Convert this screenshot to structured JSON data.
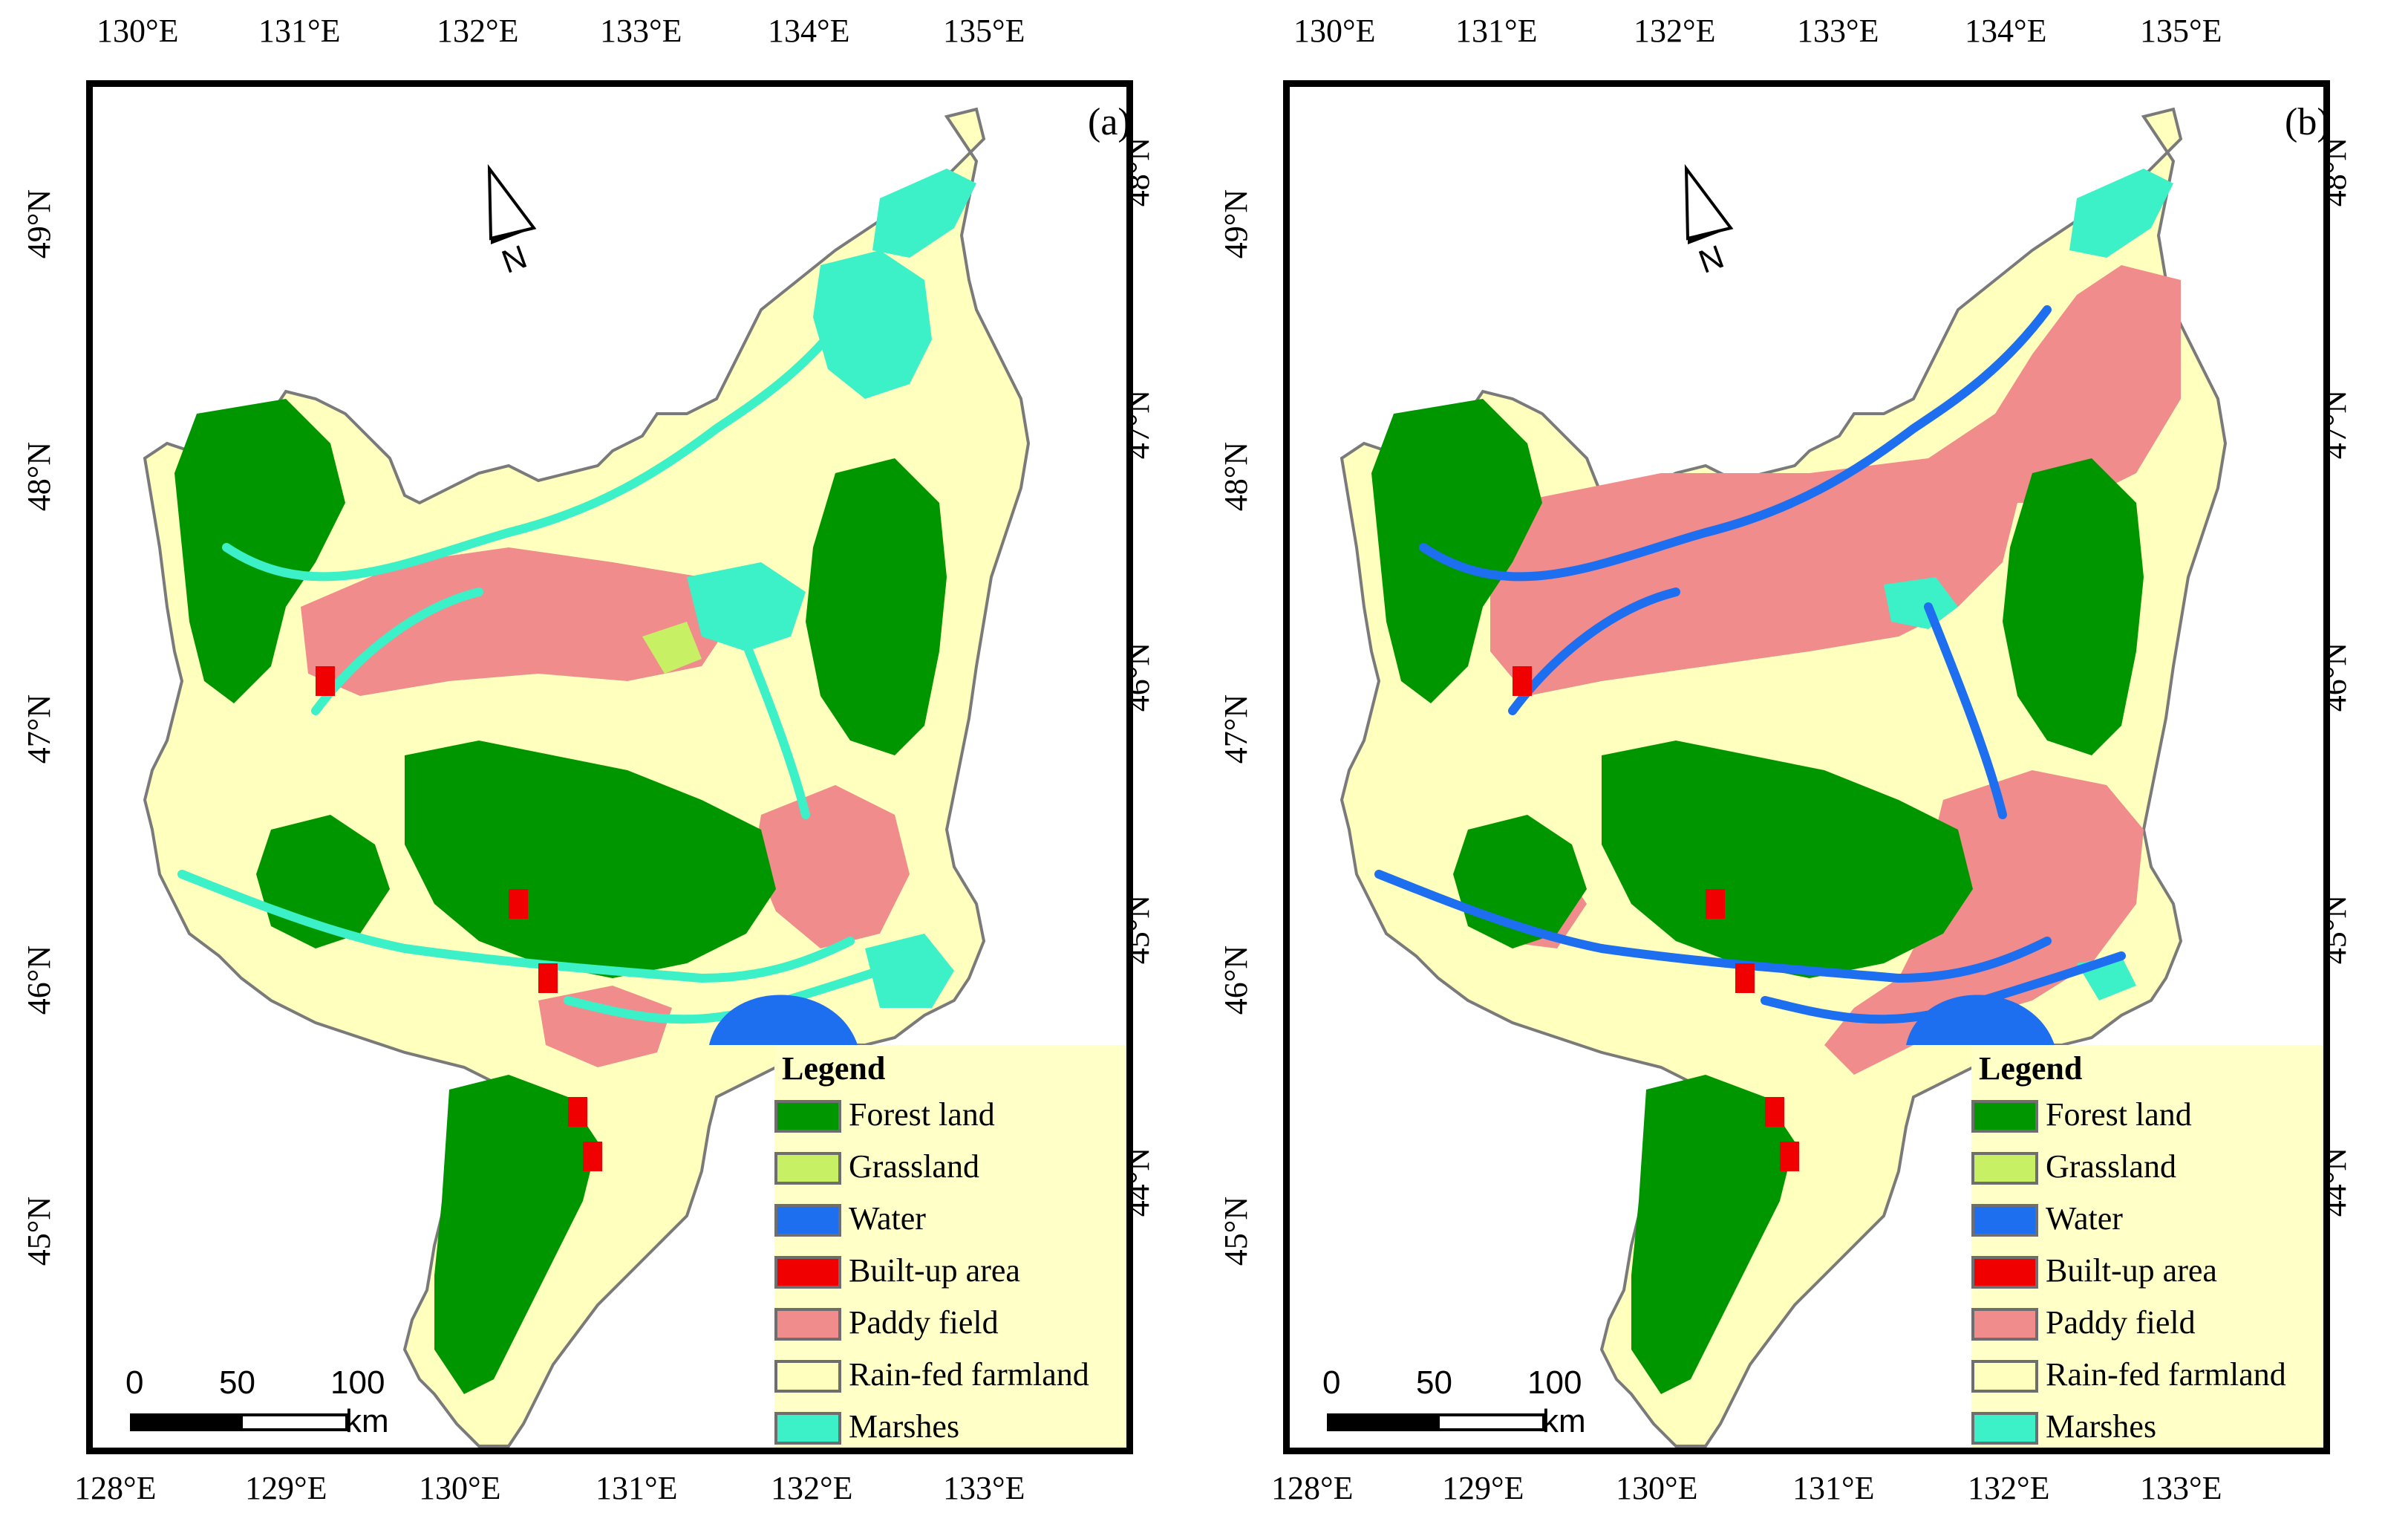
{
  "panels": [
    {
      "label": "(a)",
      "top_ticks": [
        "130°E",
        "131°E",
        "132°E",
        "133°E",
        "134°E",
        "135°E"
      ],
      "bottom_ticks": [
        "128°E",
        "129°E",
        "130°E",
        "131°E",
        "132°E",
        "133°E"
      ],
      "left_ticks": [
        "49°N",
        "48°N",
        "47°N",
        "46°N",
        "45°N"
      ],
      "right_ticks": [
        "48°N",
        "47°N",
        "46°N",
        "45°N",
        "44°N"
      ],
      "legend": {
        "title": "Legend",
        "items": [
          {
            "label": "Forest land",
            "color": "#009600"
          },
          {
            "label": "Grassland",
            "color": "#c8f064"
          },
          {
            "label": "Water",
            "color": "#1e6ef0"
          },
          {
            "label": "Built-up area",
            "color": "#f00000"
          },
          {
            "label": "Paddy field",
            "color": "#f08c8c"
          },
          {
            "label": "Rain-fed farmland",
            "color": "#ffffbe"
          },
          {
            "label": "Marshes",
            "color": "#3cf0c8"
          }
        ]
      },
      "scale": {
        "ticks": [
          "0",
          "50",
          "100"
        ],
        "unit": "km"
      }
    },
    {
      "label": "(b)",
      "top_ticks": [
        "130°E",
        "131°E",
        "132°E",
        "133°E",
        "134°E",
        "135°E"
      ],
      "bottom_ticks": [
        "128°E",
        "129°E",
        "130°E",
        "131°E",
        "132°E",
        "133°E"
      ],
      "left_ticks": [
        "49°N",
        "48°N",
        "47°N",
        "46°N",
        "45°N"
      ],
      "right_ticks": [
        "48°N",
        "47°N",
        "46°N",
        "45°N",
        "44°N"
      ],
      "legend": {
        "title": "Legend",
        "items": [
          {
            "label": "Forest land",
            "color": "#009600"
          },
          {
            "label": "Grassland",
            "color": "#c8f064"
          },
          {
            "label": "Water",
            "color": "#1e6ef0"
          },
          {
            "label": "Built-up area",
            "color": "#f00000"
          },
          {
            "label": "Paddy field",
            "color": "#f08c8c"
          },
          {
            "label": "Rain-fed farmland",
            "color": "#ffffbe"
          },
          {
            "label": "Marshes",
            "color": "#3cf0c8"
          }
        ]
      },
      "scale": {
        "ticks": [
          "0",
          "50",
          "100"
        ],
        "unit": "km"
      }
    }
  ]
}
